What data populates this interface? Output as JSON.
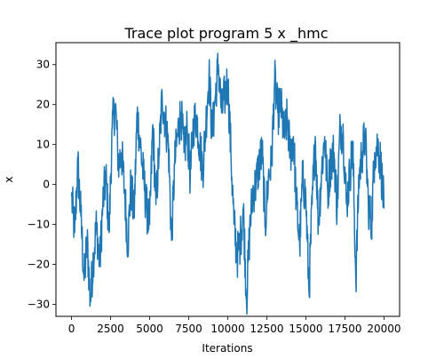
{
  "chart_data": {
    "type": "line",
    "title": "Trace plot program 5 x _hmc",
    "xlabel": "Iterations",
    "ylabel": "x",
    "xlim": [
      -1000,
      21000
    ],
    "ylim": [
      -33,
      35.5
    ],
    "x_ticks": [
      0,
      2500,
      5000,
      7500,
      10000,
      12500,
      15000,
      17500,
      20000
    ],
    "x_tick_labels": [
      "0",
      "2500",
      "5000",
      "7500",
      "10000",
      "12500",
      "15000",
      "17500",
      "20000"
    ],
    "y_ticks": [
      -30,
      -20,
      -10,
      0,
      10,
      20,
      30
    ],
    "y_tick_labels": [
      "−30",
      "−20",
      "−10",
      "0",
      "10",
      "20",
      "30"
    ],
    "grid": false,
    "legend": "none",
    "series": [
      {
        "color": "#1f77b4",
        "x": [
          0,
          200,
          400,
          600,
          800,
          1000,
          1200,
          1400,
          1600,
          1800,
          2000,
          2200,
          2400,
          2600,
          2800,
          3000,
          3200,
          3400,
          3600,
          3800,
          4000,
          4200,
          4400,
          4600,
          4800,
          5000,
          5200,
          5400,
          5600,
          5800,
          6000,
          6200,
          6400,
          6600,
          6800,
          7000,
          7200,
          7400,
          7600,
          7800,
          8000,
          8200,
          8400,
          8600,
          8800,
          9000,
          9200,
          9400,
          9600,
          9800,
          10000,
          10200,
          10400,
          10600,
          10800,
          11000,
          11200,
          11400,
          11600,
          11800,
          12000,
          12200,
          12400,
          12600,
          12800,
          13000,
          13200,
          13400,
          13600,
          13800,
          14000,
          14200,
          14400,
          14600,
          14800,
          15000,
          15200,
          15400,
          15600,
          15800,
          16000,
          16200,
          16400,
          16600,
          16800,
          17000,
          17200,
          17400,
          17600,
          17800,
          18000,
          18200,
          18400,
          18600,
          18800,
          19000,
          19200,
          19400,
          19600,
          19800,
          20000
        ],
        "values": [
          -3,
          -12,
          5,
          -8,
          -24,
          -14,
          -29,
          -18,
          -10,
          -20,
          -5,
          2,
          -12,
          14,
          20,
          5,
          8,
          -2,
          -15,
          0,
          -8,
          18,
          10,
          2,
          -6,
          -10,
          15,
          -5,
          8,
          22,
          16,
          10,
          -14,
          5,
          13,
          18,
          8,
          14,
          2,
          15,
          17,
          10,
          4,
          15,
          28,
          12,
          22,
          30,
          18,
          22,
          26,
          8,
          -10,
          -18,
          -14,
          -6,
          -29,
          -12,
          -2,
          0,
          5,
          8,
          -10,
          2,
          5,
          26,
          18,
          20,
          12,
          16,
          8,
          12,
          -5,
          -15,
          2,
          -4,
          -27,
          -5,
          12,
          -10,
          3,
          12,
          -2,
          6,
          8,
          -6,
          15,
          12,
          -5,
          2,
          10,
          -24,
          2,
          8,
          12,
          -5,
          -10,
          8,
          10,
          5,
          -6
        ]
      }
    ]
  }
}
